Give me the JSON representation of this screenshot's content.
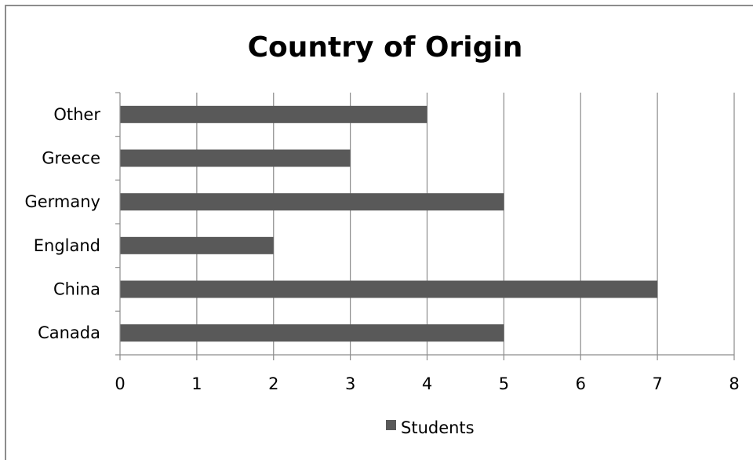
{
  "chart_data": {
    "type": "bar",
    "orientation": "horizontal",
    "title": "Country of Origin",
    "categories": [
      "Canada",
      "China",
      "England",
      "Germany",
      "Greece",
      "Other"
    ],
    "series": [
      {
        "name": "Students",
        "values": [
          5,
          7,
          2,
          5,
          3,
          4
        ]
      }
    ],
    "xlim": [
      0,
      8
    ],
    "x_ticks": [
      "0",
      "1",
      "2",
      "3",
      "4",
      "5",
      "6",
      "7",
      "8"
    ],
    "grid": "vertical",
    "legend": "bottom",
    "colors": {
      "bar": "#595959",
      "grid": "#8c8c8c",
      "axis": "#8c8c8c"
    }
  }
}
